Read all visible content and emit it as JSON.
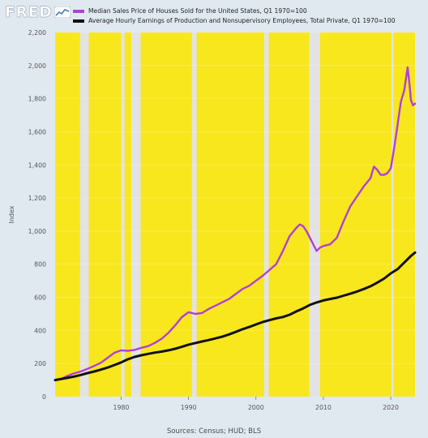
{
  "logo": {
    "text": "FRED",
    "icon": "fred-chart-icon"
  },
  "sources": "Sources: Census; HUD; BLS",
  "chart_data": {
    "type": "line",
    "ylabel": "Index",
    "xlabel": "",
    "ylim": [
      0,
      2200
    ],
    "xlim": [
      1970.2,
      2023.6
    ],
    "yticks": [
      0,
      200,
      400,
      600,
      800,
      1000,
      1200,
      1400,
      1600,
      1800,
      2000,
      2200
    ],
    "ytick_labels": [
      "0",
      "200",
      "400",
      "600",
      "800",
      "1,000",
      "1,200",
      "1,400",
      "1,600",
      "1,800",
      "2,000",
      "2,200"
    ],
    "xticks": [
      1980,
      1990,
      2000,
      2010,
      2020
    ],
    "xtick_labels": [
      "1980",
      "1990",
      "2000",
      "2010",
      "2020"
    ],
    "grid": "horizontal",
    "legend_position": "top",
    "background_color": "#f8e71c",
    "recession_color": "#e3e3e3",
    "recessions": [
      [
        1973.9,
        1975.2
      ],
      [
        1980.0,
        1980.5
      ],
      [
        1981.5,
        1982.9
      ],
      [
        1990.5,
        1991.2
      ],
      [
        2001.2,
        2001.9
      ],
      [
        2007.9,
        2009.5
      ],
      [
        2020.1,
        2020.4
      ]
    ],
    "series": [
      {
        "name": "Median Sales Price of Houses Sold for the United States, Q1 1970=100",
        "color": "#b040d8",
        "points": [
          [
            1970.2,
            100
          ],
          [
            1971,
            105
          ],
          [
            1972,
            125
          ],
          [
            1973,
            140
          ],
          [
            1974,
            152
          ],
          [
            1975,
            168
          ],
          [
            1976,
            185
          ],
          [
            1977,
            205
          ],
          [
            1978,
            235
          ],
          [
            1979,
            265
          ],
          [
            1980,
            280
          ],
          [
            1981,
            277
          ],
          [
            1982,
            282
          ],
          [
            1983,
            295
          ],
          [
            1984,
            305
          ],
          [
            1985,
            325
          ],
          [
            1986,
            350
          ],
          [
            1987,
            385
          ],
          [
            1988,
            430
          ],
          [
            1989,
            480
          ],
          [
            1990,
            510
          ],
          [
            1990.5,
            505
          ],
          [
            1991,
            500
          ],
          [
            1992,
            505
          ],
          [
            1993,
            530
          ],
          [
            1994,
            550
          ],
          [
            1995,
            570
          ],
          [
            1996,
            590
          ],
          [
            1997,
            620
          ],
          [
            1998,
            650
          ],
          [
            1999,
            670
          ],
          [
            2000,
            700
          ],
          [
            2001,
            730
          ],
          [
            2002,
            765
          ],
          [
            2003,
            800
          ],
          [
            2004,
            880
          ],
          [
            2005,
            970
          ],
          [
            2006,
            1020
          ],
          [
            2006.5,
            1040
          ],
          [
            2007,
            1030
          ],
          [
            2007.5,
            1000
          ],
          [
            2008,
            960
          ],
          [
            2008.5,
            920
          ],
          [
            2009,
            880
          ],
          [
            2009.5,
            900
          ],
          [
            2010,
            910
          ],
          [
            2011,
            920
          ],
          [
            2012,
            960
          ],
          [
            2013,
            1060
          ],
          [
            2014,
            1150
          ],
          [
            2015,
            1210
          ],
          [
            2016,
            1270
          ],
          [
            2017,
            1320
          ],
          [
            2017.5,
            1390
          ],
          [
            2018,
            1370
          ],
          [
            2018.5,
            1340
          ],
          [
            2019,
            1340
          ],
          [
            2019.5,
            1350
          ],
          [
            2020,
            1380
          ],
          [
            2020.5,
            1500
          ],
          [
            2021,
            1640
          ],
          [
            2021.5,
            1780
          ],
          [
            2022,
            1850
          ],
          [
            2022.5,
            1990
          ],
          [
            2022.8,
            1880
          ],
          [
            2023,
            1790
          ],
          [
            2023.3,
            1760
          ],
          [
            2023.6,
            1770
          ]
        ]
      },
      {
        "name": "Average Hourly Earnings of Production and Nonsupervisory Employees, Total Private, Q1 1970=100",
        "color": "#111111",
        "points": [
          [
            1970.2,
            100
          ],
          [
            1971,
            106
          ],
          [
            1972,
            113
          ],
          [
            1973,
            121
          ],
          [
            1974,
            131
          ],
          [
            1975,
            142
          ],
          [
            1976,
            152
          ],
          [
            1977,
            163
          ],
          [
            1978,
            176
          ],
          [
            1979,
            191
          ],
          [
            1980,
            207
          ],
          [
            1981,
            226
          ],
          [
            1982,
            240
          ],
          [
            1983,
            250
          ],
          [
            1984,
            258
          ],
          [
            1985,
            266
          ],
          [
            1986,
            272
          ],
          [
            1987,
            280
          ],
          [
            1988,
            289
          ],
          [
            1989,
            301
          ],
          [
            1990,
            314
          ],
          [
            1991,
            324
          ],
          [
            1992,
            333
          ],
          [
            1993,
            342
          ],
          [
            1994,
            352
          ],
          [
            1995,
            362
          ],
          [
            1996,
            376
          ],
          [
            1997,
            391
          ],
          [
            1998,
            407
          ],
          [
            1999,
            421
          ],
          [
            2000,
            436
          ],
          [
            2001,
            451
          ],
          [
            2002,
            462
          ],
          [
            2003,
            473
          ],
          [
            2004,
            481
          ],
          [
            2005,
            495
          ],
          [
            2006,
            515
          ],
          [
            2007,
            533
          ],
          [
            2008,
            554
          ],
          [
            2009,
            569
          ],
          [
            2010,
            581
          ],
          [
            2011,
            590
          ],
          [
            2012,
            598
          ],
          [
            2013,
            610
          ],
          [
            2014,
            622
          ],
          [
            2015,
            635
          ],
          [
            2016,
            650
          ],
          [
            2017,
            667
          ],
          [
            2018,
            689
          ],
          [
            2019,
            713
          ],
          [
            2020,
            745
          ],
          [
            2021,
            770
          ],
          [
            2022,
            810
          ],
          [
            2023,
            850
          ],
          [
            2023.6,
            870
          ]
        ]
      }
    ]
  }
}
